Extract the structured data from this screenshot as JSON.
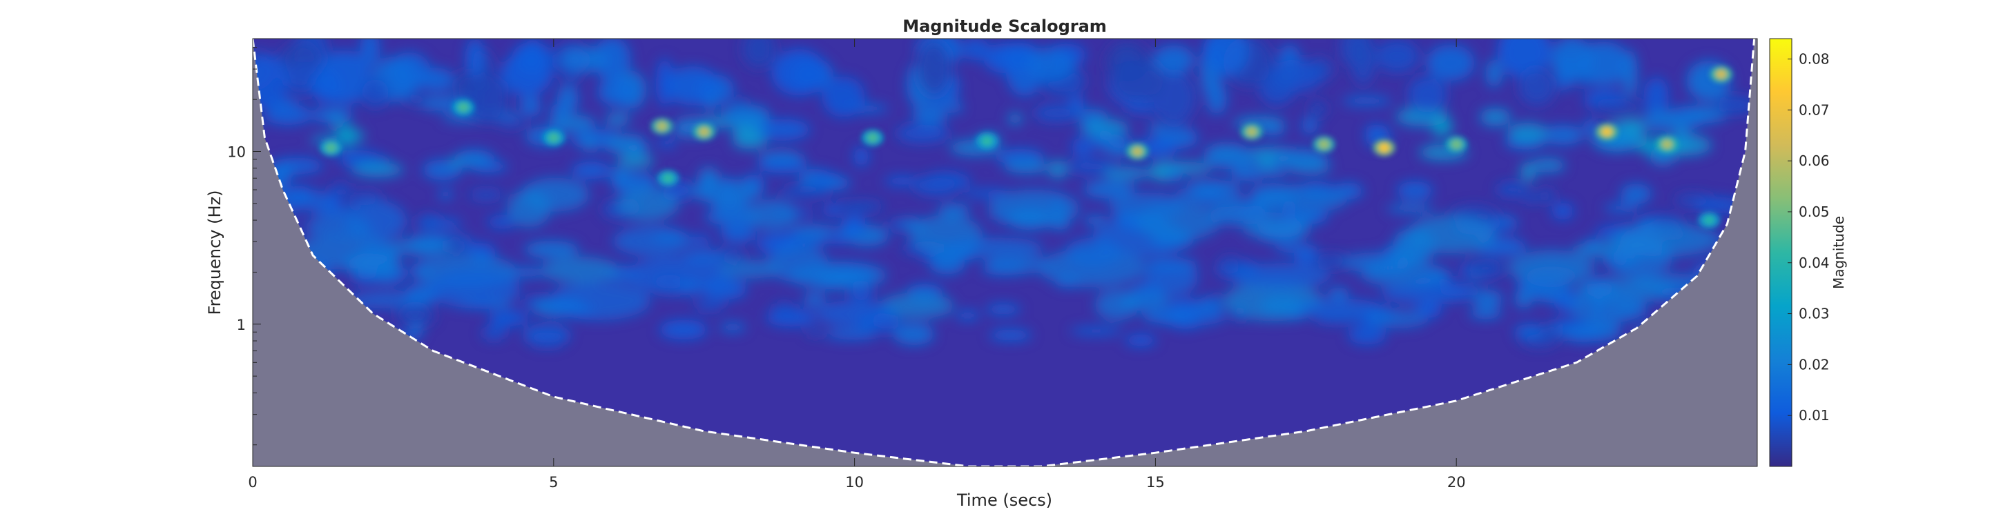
{
  "chart_data": {
    "type": "heatmap",
    "title": "Magnitude Scalogram",
    "xlabel": "Time (secs)",
    "ylabel": "Frequency (Hz)",
    "x_range": [
      0,
      25
    ],
    "y_scale": "log",
    "y_range": [
      0.15,
      45
    ],
    "x_ticks": [
      0,
      5,
      10,
      15,
      20
    ],
    "x_tick_labels": [
      "0",
      "5",
      "10",
      "15",
      "20"
    ],
    "y_ticks": [
      1,
      10
    ],
    "y_tick_labels": [
      "1",
      "10"
    ],
    "cone_of_influence": {
      "style": "dashed-white",
      "shaded_region_color": "#787690",
      "points": [
        [
          0.0,
          45
        ],
        [
          0.2,
          12
        ],
        [
          0.5,
          6
        ],
        [
          1.0,
          2.5
        ],
        [
          2.0,
          1.15
        ],
        [
          3.0,
          0.7
        ],
        [
          5.0,
          0.38
        ],
        [
          7.5,
          0.24
        ],
        [
          10.0,
          0.18
        ],
        [
          11.9,
          0.15
        ],
        [
          13.1,
          0.15
        ],
        [
          15.0,
          0.18
        ],
        [
          17.5,
          0.24
        ],
        [
          20.0,
          0.36
        ],
        [
          22.0,
          0.6
        ],
        [
          23.0,
          0.95
        ],
        [
          24.0,
          1.9
        ],
        [
          24.5,
          3.8
        ],
        [
          24.8,
          10
        ],
        [
          24.95,
          45
        ]
      ]
    },
    "colorbar": {
      "label": "Magnitude",
      "range": [
        0.0,
        0.084
      ],
      "ticks": [
        0.01,
        0.02,
        0.03,
        0.04,
        0.05,
        0.06,
        0.07,
        0.08
      ],
      "tick_labels": [
        "0.01",
        "0.02",
        "0.03",
        "0.04",
        "0.05",
        "0.06",
        "0.07",
        "0.08"
      ],
      "colormap": "parula",
      "colormap_stops": [
        "#352a87",
        "#0f5cdd",
        "#1481d6",
        "#06a4ca",
        "#2eb7a4",
        "#87bf77",
        "#d1bb59",
        "#fec832",
        "#f9fb0e"
      ]
    },
    "hotspots": [
      {
        "x": 1.3,
        "f": 10.5,
        "value": 0.046
      },
      {
        "x": 3.5,
        "f": 18,
        "value": 0.045
      },
      {
        "x": 5.0,
        "f": 12,
        "value": 0.044
      },
      {
        "x": 6.8,
        "f": 14,
        "value": 0.058
      },
      {
        "x": 6.9,
        "f": 7,
        "value": 0.042
      },
      {
        "x": 7.5,
        "f": 13,
        "value": 0.06
      },
      {
        "x": 10.3,
        "f": 12,
        "value": 0.045
      },
      {
        "x": 12.2,
        "f": 11.5,
        "value": 0.042
      },
      {
        "x": 14.7,
        "f": 10,
        "value": 0.06
      },
      {
        "x": 16.6,
        "f": 13,
        "value": 0.058
      },
      {
        "x": 17.8,
        "f": 11,
        "value": 0.055
      },
      {
        "x": 18.8,
        "f": 10.5,
        "value": 0.072
      },
      {
        "x": 20.0,
        "f": 11,
        "value": 0.05
      },
      {
        "x": 22.5,
        "f": 13,
        "value": 0.07
      },
      {
        "x": 23.5,
        "f": 11,
        "value": 0.058
      },
      {
        "x": 24.4,
        "f": 28,
        "value": 0.063
      },
      {
        "x": 24.2,
        "f": 4,
        "value": 0.04
      }
    ]
  }
}
